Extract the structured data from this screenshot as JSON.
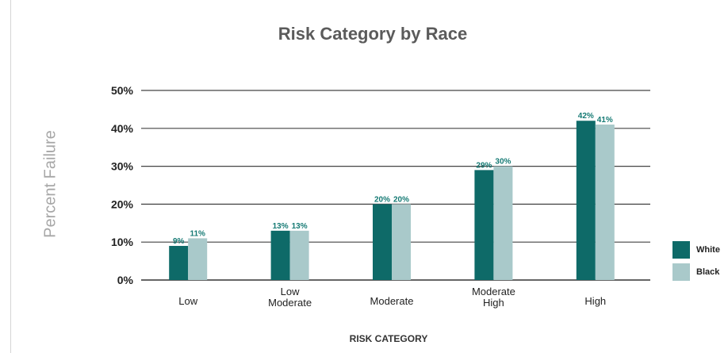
{
  "chart_data": {
    "type": "bar",
    "title": "Risk Category by Race",
    "xlabel": "RISK CATEGORY",
    "ylabel": "Percent Failure",
    "categories": [
      [
        "Low"
      ],
      [
        "Low",
        "Moderate"
      ],
      [
        "Moderate"
      ],
      [
        "Moderate",
        "High"
      ],
      [
        "High"
      ]
    ],
    "series": [
      {
        "name": "White",
        "values": [
          9,
          13,
          20,
          29,
          42
        ],
        "labels": [
          "9%",
          "13%",
          "20%",
          "29%",
          "42%"
        ],
        "color": "#0e6a68"
      },
      {
        "name": "Black",
        "values": [
          11,
          13,
          20,
          30,
          41
        ],
        "labels": [
          "11%",
          "13%",
          "20%",
          "30%",
          "41%"
        ],
        "color": "#a9c9ca"
      }
    ],
    "yticks": [
      "0%",
      "10%",
      "20%",
      "30%",
      "40%",
      "50%"
    ],
    "ylim": [
      0,
      50
    ],
    "grid": true,
    "legend_position": "right",
    "label_color": "#157a74"
  }
}
